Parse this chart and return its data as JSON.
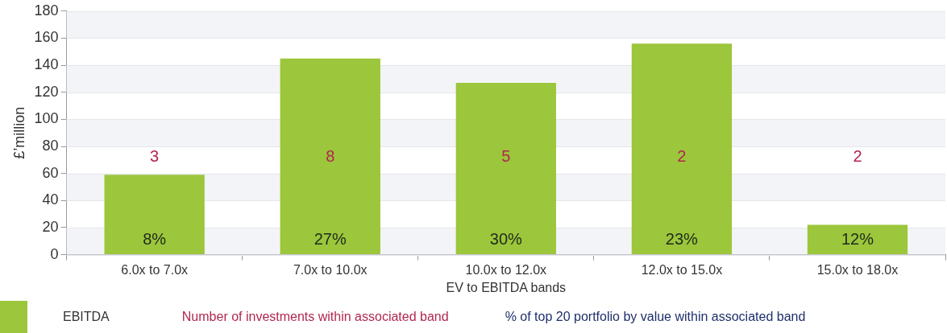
{
  "chart_data": {
    "type": "bar",
    "xlabel": "EV to EBITDA bands",
    "ylabel": "£’million",
    "categories": [
      "6.0x to 7.0x",
      "7.0x to 10.0x",
      "10.0x to 12.0x",
      "12.0x to 15.0x",
      "15.0x to 18.0x"
    ],
    "series": [
      {
        "name": "EBITDA",
        "color": "#9cc63b",
        "values": [
          59,
          145,
          127,
          156,
          22
        ]
      }
    ],
    "ylim": [
      0,
      180
    ],
    "yticks": [
      0,
      20,
      40,
      60,
      80,
      100,
      120,
      140,
      160,
      180
    ],
    "grid": "y",
    "legend": "bottom left",
    "annotations": [
      "3",
      "8",
      "5",
      "2",
      "2",
      "8%",
      "27%",
      "30%",
      "23%",
      "12%",
      "Number of investments within associated band",
      "% of top 20 portfolio by value within associated band"
    ]
  }
}
